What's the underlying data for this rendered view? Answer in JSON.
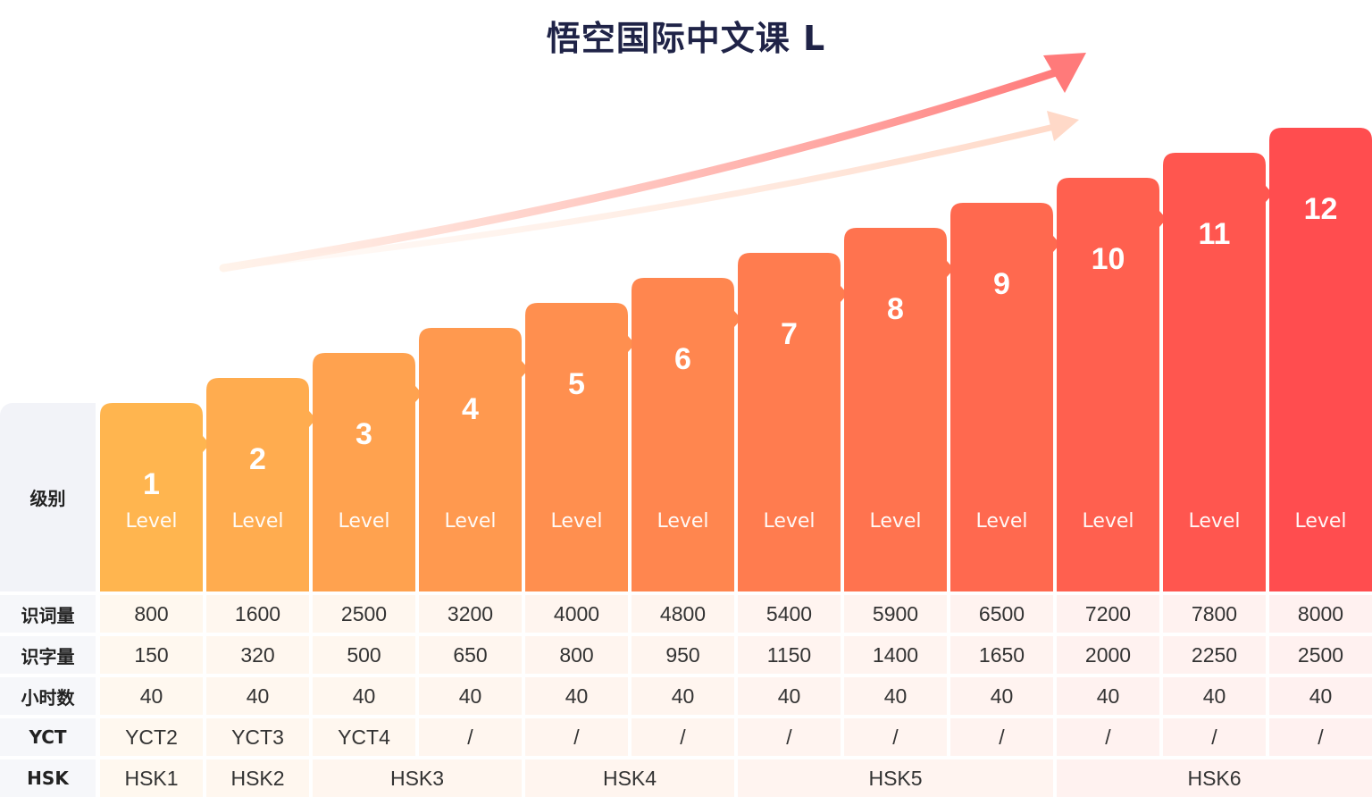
{
  "title": "悟空国际中文课 L",
  "chart_data": {
    "type": "table",
    "row_labels": {
      "level": "级别",
      "vocab": "识词量",
      "chars": "识字量",
      "hours": "小时数",
      "yct": "YCT",
      "hsk": "HSK"
    },
    "level_word": "Level",
    "levels": [
      "1",
      "2",
      "3",
      "4",
      "5",
      "6",
      "7",
      "8",
      "9",
      "10",
      "11",
      "12"
    ],
    "vocab": [
      "800",
      "1600",
      "2500",
      "3200",
      "4000",
      "4800",
      "5400",
      "5900",
      "6500",
      "7200",
      "7800",
      "8000"
    ],
    "chars": [
      "150",
      "320",
      "500",
      "650",
      "800",
      "950",
      "1150",
      "1400",
      "1650",
      "2000",
      "2250",
      "2500"
    ],
    "hours": [
      "40",
      "40",
      "40",
      "40",
      "40",
      "40",
      "40",
      "40",
      "40",
      "40",
      "40",
      "40"
    ],
    "yct": [
      "YCT2",
      "YCT3",
      "YCT4",
      "/",
      "/",
      "/",
      "/",
      "/",
      "/",
      "/",
      "/",
      "/"
    ],
    "hsk": [
      {
        "label": "HSK1",
        "start": 0,
        "span": 1
      },
      {
        "label": "HSK2",
        "start": 1,
        "span": 1
      },
      {
        "label": "HSK3",
        "start": 2,
        "span": 2
      },
      {
        "label": "HSK4",
        "start": 4,
        "span": 2
      },
      {
        "label": "HSK5",
        "start": 6,
        "span": 3
      },
      {
        "label": "HSK6",
        "start": 9,
        "span": 3
      }
    ],
    "colors": {
      "start": "#ffb54f",
      "end": "#ff4d4f",
      "arrow_main": "#ff7a7a",
      "arrow_light": "#ffd9c8"
    }
  }
}
